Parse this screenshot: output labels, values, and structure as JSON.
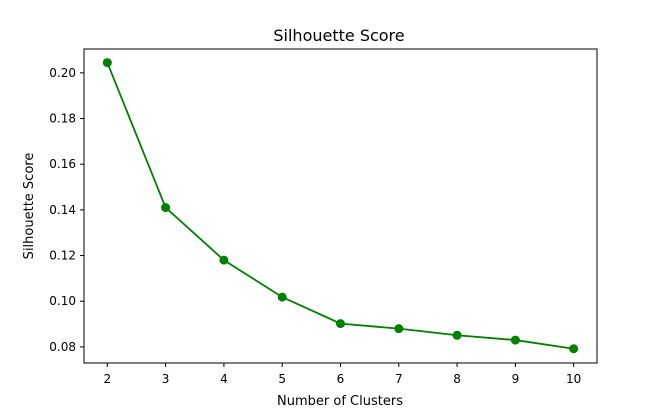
{
  "chart_data": {
    "type": "line",
    "title": "Silhouette Score",
    "xlabel": "Number of Clusters",
    "ylabel": "Silhouette Score",
    "x": [
      2,
      3,
      4,
      5,
      6,
      7,
      8,
      9,
      10
    ],
    "series": [
      {
        "values": [
          0.2045,
          0.141,
          0.118,
          0.1018,
          0.0902,
          0.088,
          0.0851,
          0.083,
          0.0792
        ],
        "color": "#008000"
      }
    ],
    "xticks": [
      "2",
      "3",
      "4",
      "5",
      "6",
      "7",
      "8",
      "9",
      "10"
    ],
    "yticks": [
      "0.08",
      "0.10",
      "0.12",
      "0.14",
      "0.16",
      "0.18",
      "0.20"
    ],
    "xlim": [
      1.6,
      10.4
    ],
    "ylim": [
      0.07296,
      0.21044
    ],
    "marker": "circle",
    "grid": false
  }
}
